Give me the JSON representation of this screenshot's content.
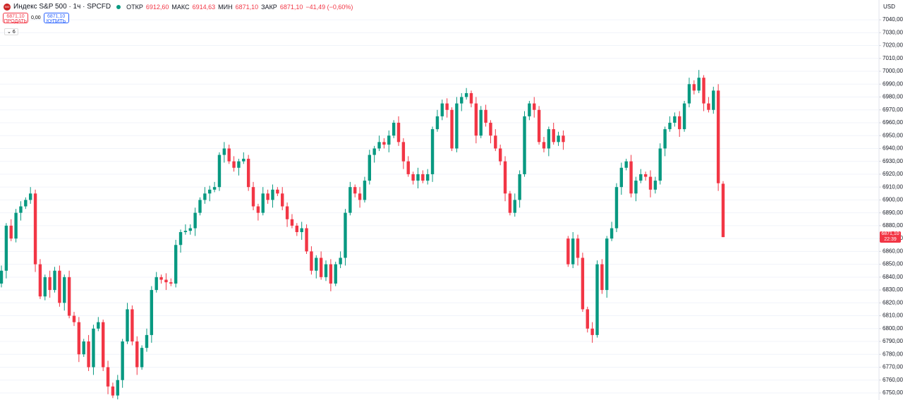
{
  "header": {
    "symbol_badge": "500",
    "title": "Индекс S&P 500 · 1ч · SPCFD",
    "ohlc": [
      {
        "label": "ОТКР",
        "value": "6912,60"
      },
      {
        "label": "МАКС",
        "value": "6914,63"
      },
      {
        "label": "МИН",
        "value": "6871,10"
      },
      {
        "label": "ЗАКР",
        "value": "6871,10"
      }
    ],
    "change": "−41,49 (−0,60%)"
  },
  "trade": {
    "sell": {
      "price": "6871,10",
      "label": "ПРОДАТЬ"
    },
    "spread": "0,00",
    "buy": {
      "price": "6871,10",
      "label": "КУПИТЬ"
    },
    "indicators": "6"
  },
  "chart_data": {
    "type": "candlestick",
    "currency": "USD",
    "up_color": "#089981",
    "down_color": "#f23645",
    "grid": true,
    "ylim": [
      6744.5,
      7055.4
    ],
    "yticks": [
      {
        "value": 6750,
        "label": "6750,00"
      },
      {
        "value": 6760,
        "label": "6760,00"
      },
      {
        "value": 6770,
        "label": "6770,00"
      },
      {
        "value": 6780,
        "label": "6780,00"
      },
      {
        "value": 6790,
        "label": "6790,00"
      },
      {
        "value": 6800,
        "label": "6800,00"
      },
      {
        "value": 6810,
        "label": "6810,00"
      },
      {
        "value": 6820,
        "label": "6820,00"
      },
      {
        "value": 6830,
        "label": "6830,00"
      },
      {
        "value": 6840,
        "label": "6840,00"
      },
      {
        "value": 6850,
        "label": "6850,00"
      },
      {
        "value": 6860,
        "label": "6860,00"
      },
      {
        "value": 6870,
        "label": "6870,00"
      },
      {
        "value": 6880,
        "label": "6880,00"
      },
      {
        "value": 6890,
        "label": "6890,00"
      },
      {
        "value": 6900,
        "label": "6900,00"
      },
      {
        "value": 6910,
        "label": "6910,00"
      },
      {
        "value": 6920,
        "label": "6920,00"
      },
      {
        "value": 6930,
        "label": "6930,00"
      },
      {
        "value": 6940,
        "label": "6940,00"
      },
      {
        "value": 6950,
        "label": "6950,00"
      },
      {
        "value": 6960,
        "label": "6960,00"
      },
      {
        "value": 6970,
        "label": "6970,00"
      },
      {
        "value": 6980,
        "label": "6980,00"
      },
      {
        "value": 6990,
        "label": "6990,00"
      },
      {
        "value": 7000,
        "label": "7000,00"
      },
      {
        "value": 7010,
        "label": "7010,00"
      },
      {
        "value": 7020,
        "label": "7020,00"
      },
      {
        "value": 7030,
        "label": "7030,00"
      },
      {
        "value": 7040,
        "label": "7040,00"
      }
    ],
    "last_price": {
      "value": 6871.1,
      "label": "6871,10"
    },
    "last_time": "22:39",
    "open": [
      6835,
      6845,
      6880,
      6870,
      6890,
      6895,
      6900,
      6905,
      6850,
      6825,
      6840,
      6830,
      6845,
      6820,
      6840,
      6810,
      6805,
      6780,
      6790,
      6770,
      6800,
      6805,
      6770,
      6755,
      6748,
      6760,
      6790,
      6815,
      6790,
      6770,
      6785,
      6795,
      6830,
      6840,
      6838,
      6836,
      6835,
      6865,
      6875,
      6876,
      6878,
      6890,
      6900,
      6905,
      6908,
      6910,
      6935,
      6940,
      6930,
      6925,
      6930,
      6932,
      6910,
      6895,
      6890,
      6905,
      6900,
      6908,
      6905,
      6895,
      6885,
      6880,
      6875,
      6878,
      6860,
      6845,
      6855,
      6840,
      6850,
      6835,
      6850,
      6855,
      6890,
      6910,
      6905,
      6900,
      6915,
      6935,
      6940,
      6945,
      6943,
      6950,
      6960,
      6945,
      6930,
      6920,
      6915,
      6920,
      6915,
      6920,
      6955,
      6965,
      6975,
      6970,
      6940,
      6975,
      6980,
      6983,
      6975,
      6950,
      6970,
      6960,
      6950,
      6940,
      6930,
      6905,
      6890,
      6900,
      6920,
      6965,
      6975,
      6970,
      6945,
      6940,
      6955,
      6945,
      6950,
      6870,
      6850,
      6870,
      6855,
      6815,
      6800,
      6795,
      6850,
      6830,
      6870,
      6878,
      6910,
      6925,
      6930,
      6905,
      6915,
      6920,
      6918,
      6908,
      6915,
      6940,
      6955,
      6960,
      6965,
      6955,
      6975,
      6990,
      6985,
      6995,
      6975,
      6970,
      6985,
      6912.6
    ],
    "high": [
      6849,
      6882,
      6885,
      6893,
      6899,
      6902,
      6910,
      6908,
      6854,
      6842,
      6845,
      6848,
      6849,
      6842,
      6845,
      6813,
      6809,
      6792,
      6795,
      6803,
      6809,
      6807,
      6775,
      6758,
      6764,
      6792,
      6820,
      6818,
      6794,
      6787,
      6800,
      6833,
      6844,
      6842,
      6843,
      6839,
      6869,
      6877,
      6881,
      6881,
      6894,
      6902,
      6910,
      6911,
      6914,
      6937,
      6945,
      6943,
      6934,
      6932,
      6937,
      6935,
      6914,
      6897,
      6910,
      6908,
      6912,
      6910,
      6910,
      6898,
      6889,
      6882,
      6883,
      6881,
      6864,
      6857,
      6860,
      6853,
      6854,
      6852,
      6860,
      6893,
      6914,
      6912,
      6910,
      6918,
      6939,
      6942,
      6950,
      6948,
      6954,
      6962,
      6965,
      6948,
      6934,
      6922,
      6925,
      6923,
      6924,
      6957,
      6970,
      6978,
      6979,
      6972,
      6980,
      6983,
      6987,
      6985,
      6980,
      6973,
      6974,
      6962,
      6955,
      6943,
      6934,
      6907,
      6905,
      6923,
      6969,
      6977,
      6980,
      6973,
      6949,
      6957,
      6960,
      6953,
      6954,
      6872,
      6875,
      6873,
      6859,
      6817,
      6805,
      6853,
      6854,
      6872,
      6883,
      6913,
      6929,
      6932,
      6935,
      6918,
      6924,
      6922,
      6923,
      6918,
      6944,
      6957,
      6965,
      6968,
      6969,
      6977,
      6995,
      6993,
      7001,
      6997,
      6980,
      6988,
      6990,
      6914.63
    ],
    "low": [
      6832,
      6839,
      6868,
      6867,
      6884,
      6893,
      6897,
      6844,
      6823,
      6822,
      6824,
      6828,
      6817,
      6814,
      6808,
      6802,
      6774,
      6778,
      6767,
      6764,
      6798,
      6767,
      6749,
      6746,
      6745,
      6754,
      6788,
      6787,
      6764,
      6768,
      6782,
      6789,
      6828,
      6835,
      6830,
      6833,
      6832,
      6859,
      6873,
      6873,
      6872,
      6888,
      6897,
      6899,
      6906,
      6907,
      6929,
      6928,
      6922,
      6919,
      6928,
      6907,
      6892,
      6884,
      6888,
      6897,
      6894,
      6903,
      6892,
      6879,
      6878,
      6872,
      6869,
      6858,
      6842,
      6839,
      6838,
      6837,
      6829,
      6833,
      6847,
      6849,
      6888,
      6902,
      6894,
      6898,
      6912,
      6929,
      6938,
      6940,
      6937,
      6948,
      6942,
      6924,
      6918,
      6912,
      6909,
      6913,
      6912,
      6914,
      6953,
      6962,
      6964,
      6938,
      6937,
      6969,
      6978,
      6972,
      6944,
      6948,
      6957,
      6944,
      6938,
      6927,
      6899,
      6888,
      6887,
      6894,
      6918,
      6962,
      6964,
      6943,
      6937,
      6934,
      6943,
      6942,
      6939,
      6848,
      6847,
      6849,
      6813,
      6797,
      6789,
      6793,
      6827,
      6824,
      6868,
      6875,
      6904,
      6923,
      6902,
      6899,
      6913,
      6915,
      6902,
      6905,
      6912,
      6934,
      6953,
      6957,
      6949,
      6953,
      6972,
      6982,
      6983,
      6969,
      6968,
      6967,
      6907,
      6871.1
    ],
    "close": [
      6845,
      6880,
      6870,
      6890,
      6895,
      6900,
      6905,
      6850,
      6825,
      6840,
      6830,
      6845,
      6820,
      6840,
      6810,
      6805,
      6780,
      6790,
      6770,
      6800,
      6805,
      6770,
      6755,
      6748,
      6760,
      6790,
      6815,
      6790,
      6770,
      6785,
      6795,
      6830,
      6840,
      6838,
      6836,
      6835,
      6865,
      6875,
      6876,
      6878,
      6890,
      6900,
      6905,
      6908,
      6910,
      6935,
      6940,
      6930,
      6925,
      6930,
      6932,
      6910,
      6895,
      6890,
      6905,
      6900,
      6908,
      6905,
      6895,
      6885,
      6880,
      6875,
      6878,
      6860,
      6845,
      6855,
      6840,
      6850,
      6835,
      6850,
      6855,
      6890,
      6910,
      6905,
      6900,
      6915,
      6935,
      6940,
      6945,
      6943,
      6950,
      6960,
      6945,
      6930,
      6920,
      6915,
      6920,
      6915,
      6920,
      6955,
      6965,
      6975,
      6970,
      6940,
      6975,
      6980,
      6983,
      6975,
      6950,
      6970,
      6960,
      6950,
      6940,
      6930,
      6905,
      6890,
      6900,
      6920,
      6965,
      6975,
      6970,
      6945,
      6940,
      6955,
      6945,
      6950,
      6945,
      6850,
      6870,
      6855,
      6815,
      6800,
      6795,
      6850,
      6830,
      6870,
      6878,
      6910,
      6925,
      6930,
      6905,
      6915,
      6920,
      6918,
      6908,
      6915,
      6940,
      6955,
      6960,
      6965,
      6955,
      6975,
      6990,
      6985,
      6995,
      6975,
      6970,
      6985,
      6913,
      6871.1
    ]
  }
}
